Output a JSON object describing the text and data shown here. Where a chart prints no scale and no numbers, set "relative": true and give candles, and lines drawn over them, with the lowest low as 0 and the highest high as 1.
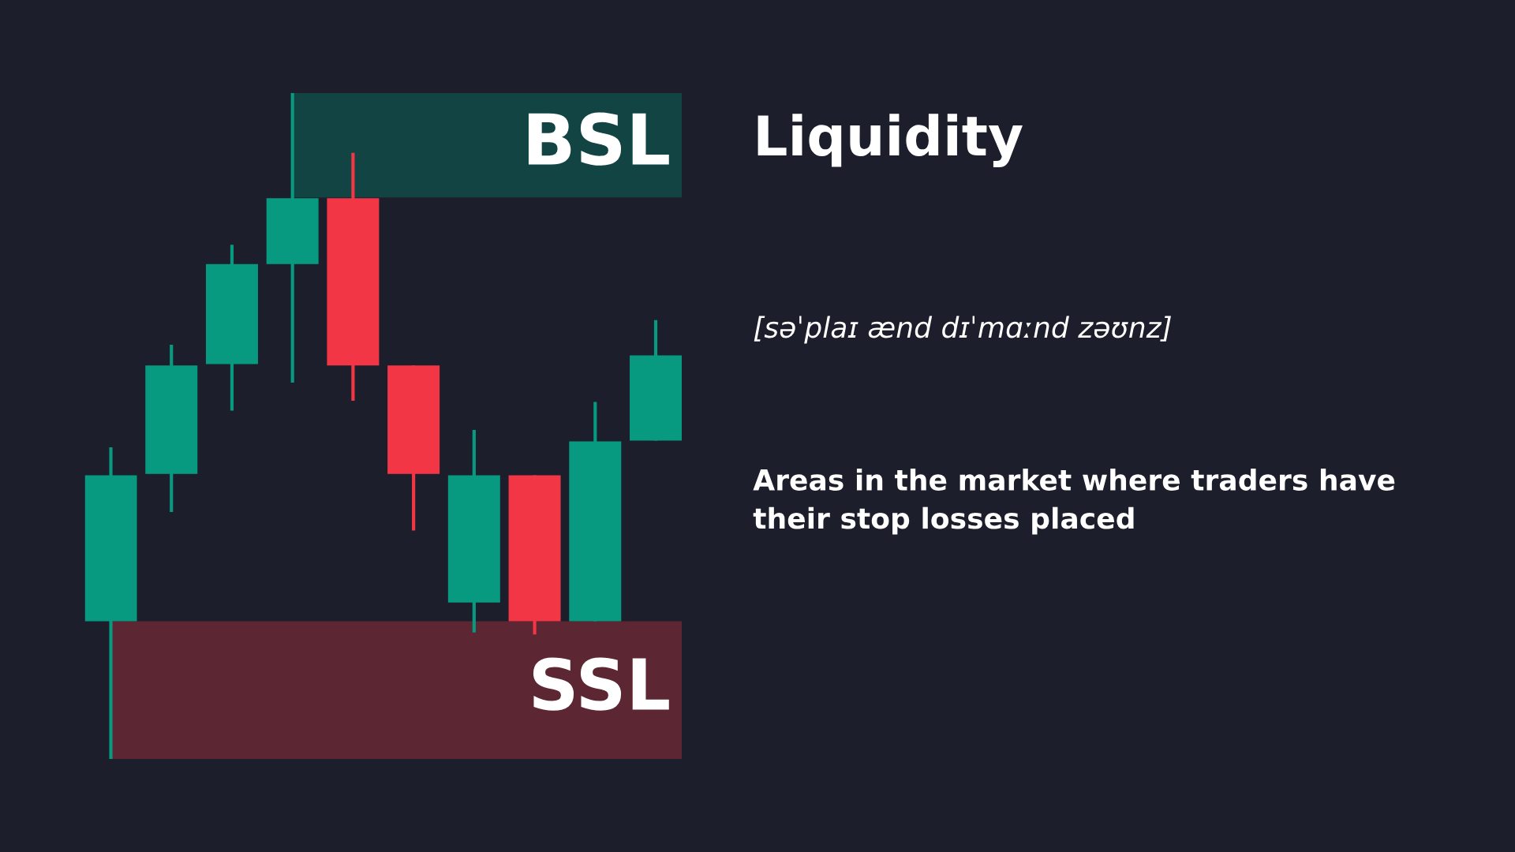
{
  "chart_data": {
    "type": "candlestick",
    "title": "Liquidity",
    "subtitle": "[səˈplaɪ ænd dɪˈmɑːnd zəʊnz]",
    "annotations": [
      "Areas in the market where traders have their stop losses placed"
    ],
    "relative": true,
    "categories": [
      null,
      null,
      null,
      null,
      null,
      null,
      null,
      null,
      null,
      null
    ],
    "ohlc": [
      [
        0.207,
        0.468,
        0.0,
        0.426
      ],
      [
        0.428,
        0.622,
        0.371,
        0.591
      ],
      [
        0.593,
        0.772,
        0.523,
        0.743
      ],
      [
        0.743,
        1.0,
        0.565,
        0.842
      ],
      [
        0.842,
        0.91,
        0.538,
        0.591
      ],
      [
        0.591,
        0.591,
        0.343,
        0.428
      ],
      [
        0.235,
        0.494,
        0.19,
        0.426
      ],
      [
        0.426,
        0.426,
        0.187,
        0.207
      ],
      [
        0.207,
        0.536,
        0.207,
        0.477
      ],
      [
        0.478,
        0.659,
        0.478,
        0.606
      ]
    ],
    "colors": [
      "#089981",
      "#089981",
      "#089981",
      "#089981",
      "#f23645",
      "#f23645",
      "#089981",
      "#f23645",
      "#089981",
      "#089981"
    ],
    "bands": [
      {
        "axis": "y",
        "from": 0.843,
        "to": 1.0,
        "label": "BSL",
        "color": "#134444"
      },
      {
        "axis": "y",
        "from": 0.0,
        "to": 0.207,
        "label": "SSL",
        "color": "#5c2633"
      }
    ]
  }
}
